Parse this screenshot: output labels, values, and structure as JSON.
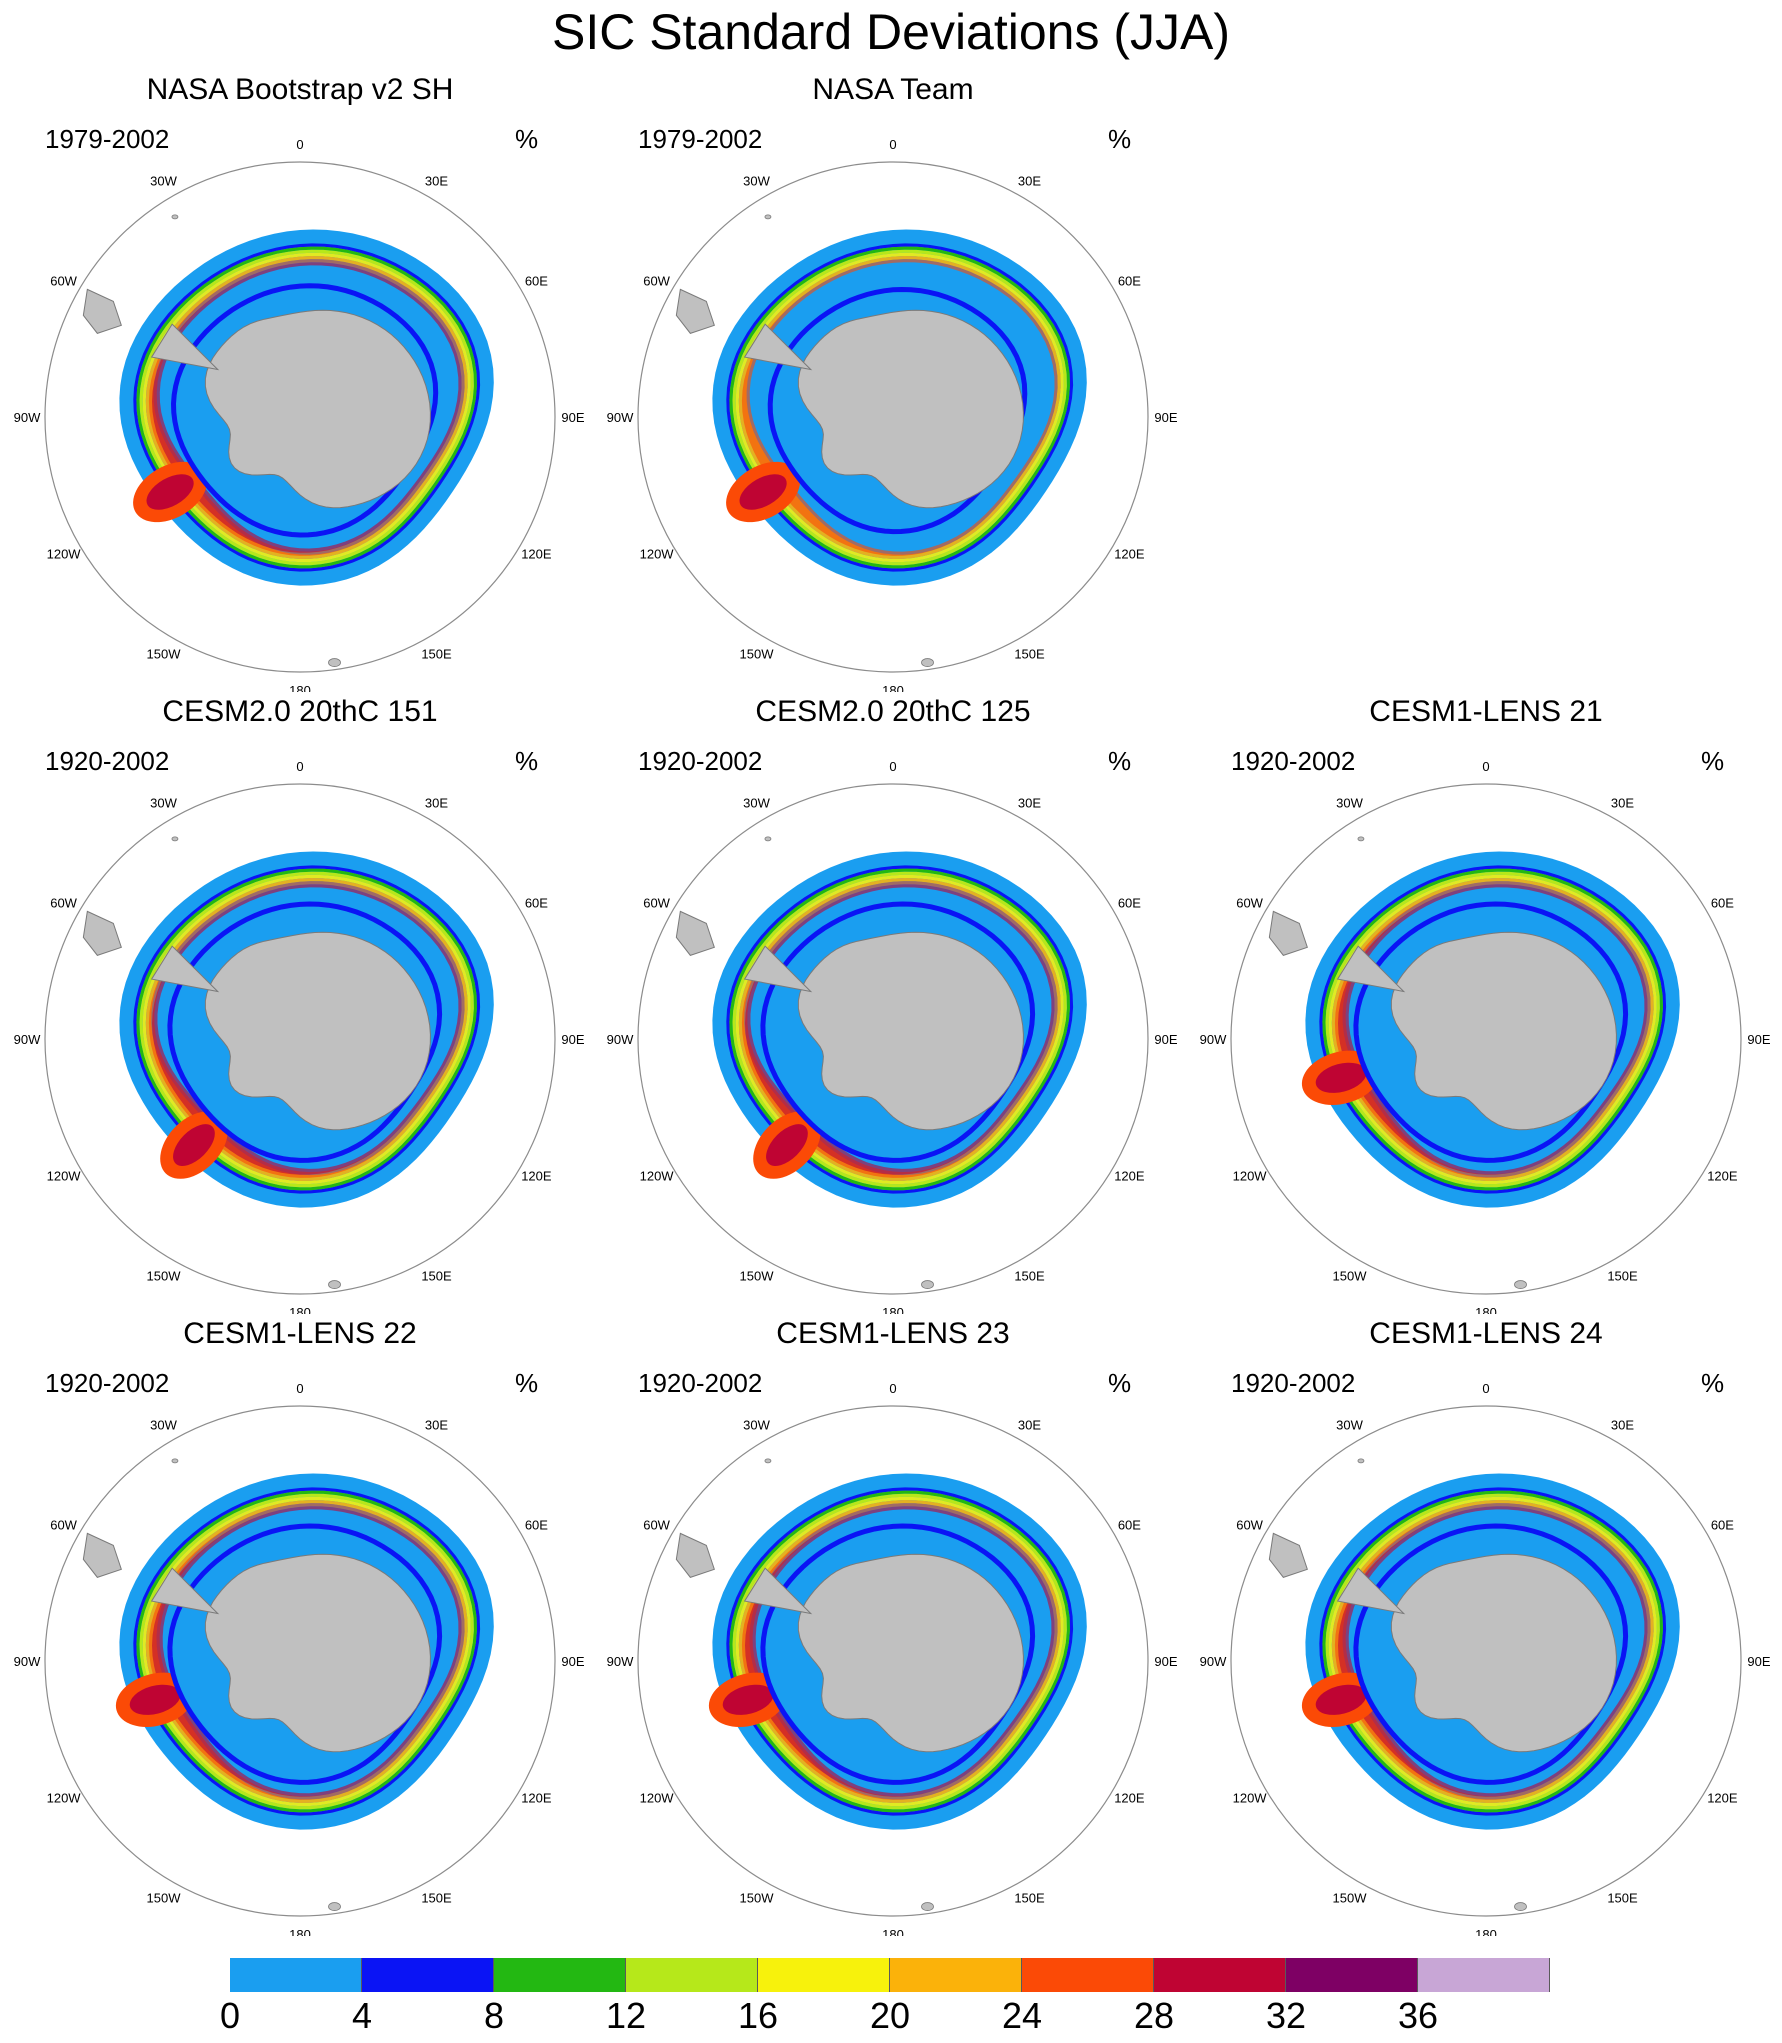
{
  "title": "SIC Standard Deviations (JJA)",
  "units": "%",
  "lon_labels": {
    "0": "0",
    "30E": "30E",
    "60E": "60E",
    "90E": "90E",
    "120E": "120E",
    "150E": "150E",
    "180": "180",
    "150W": "150W",
    "120W": "120W",
    "90W": "90W",
    "60W": "60W",
    "30W": "30W"
  },
  "panels": [
    {
      "title": "NASA Bootstrap v2 SH",
      "period": "1979-2002"
    },
    {
      "title": "NASA Team",
      "period": "1979-2002"
    },
    {
      "title": "CESM2.0 20thC 151",
      "period": "1920-2002"
    },
    {
      "title": "CESM2.0 20thC 125",
      "period": "1920-2002"
    },
    {
      "title": "CESM1-LENS 21",
      "period": "1920-2002"
    },
    {
      "title": "CESM1-LENS 22",
      "period": "1920-2002"
    },
    {
      "title": "CESM1-LENS 23",
      "period": "1920-2002"
    },
    {
      "title": "CESM1-LENS 24",
      "period": "1920-2002"
    }
  ],
  "colorbar": {
    "labels": [
      "0",
      "4",
      "8",
      "12",
      "16",
      "20",
      "24",
      "28",
      "32",
      "36"
    ],
    "colors": [
      "#1a9ef0",
      "#0a14f5",
      "#23b812",
      "#b6e81a",
      "#f7f20c",
      "#fbb20a",
      "#fb4a06",
      "#bf0433",
      "#7e0064",
      "#c8a6d6"
    ]
  },
  "palette": {
    "land": "#c0c0c0",
    "ocean": "#ffffff",
    "outline": "#7a7a7a"
  }
}
